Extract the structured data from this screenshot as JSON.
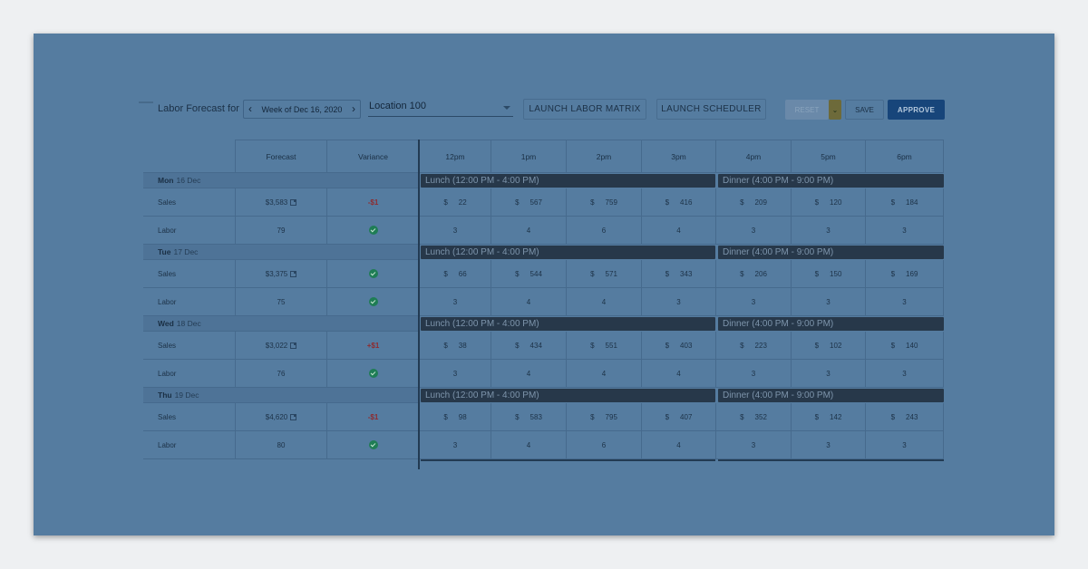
{
  "toolbar": {
    "label": "Labor Forecast for",
    "prev_icon": "‹",
    "next_icon": "›",
    "week": "Week of Dec 16, 2020",
    "location": "Location 100",
    "launch_matrix": "LAUNCH LABOR MATRIX",
    "launch_scheduler": "LAUNCH SCHEDULER",
    "reset": "RESET",
    "reset_menu_icon": "⌄",
    "save": "SAVE",
    "approve": "APPROVE"
  },
  "columns": {
    "forecast": "Forecast",
    "variance": "Variance",
    "hours": [
      "12pm",
      "1pm",
      "2pm",
      "3pm",
      "4pm",
      "5pm",
      "6pm"
    ]
  },
  "row_labels": {
    "sales": "Sales",
    "labor": "Labor"
  },
  "currency": "$",
  "days": [
    {
      "dow": "Mon",
      "date": "16 Dec",
      "sales_forecast": "$3,583",
      "sales_variance": "-$1",
      "labor_forecast": "79",
      "labor_variance": "ok",
      "periods": [
        "Lunch (12:00 PM - 4:00 PM)",
        "Dinner (4:00 PM - 9:00 PM)"
      ],
      "sales": [
        "22",
        "567",
        "759",
        "416",
        "209",
        "120",
        "184"
      ],
      "labor": [
        "3",
        "4",
        "6",
        "4",
        "3",
        "3",
        "3"
      ]
    },
    {
      "dow": "Tue",
      "date": "17 Dec",
      "sales_forecast": "$3,375",
      "sales_variance": "ok",
      "labor_forecast": "75",
      "labor_variance": "ok",
      "periods": [
        "Lunch (12:00 PM - 4:00 PM)",
        "Dinner (4:00 PM - 9:00 PM)"
      ],
      "sales": [
        "66",
        "544",
        "571",
        "343",
        "206",
        "150",
        "169"
      ],
      "labor": [
        "3",
        "4",
        "4",
        "3",
        "3",
        "3",
        "3"
      ]
    },
    {
      "dow": "Wed",
      "date": "18 Dec",
      "sales_forecast": "$3,022",
      "sales_variance": "+$1",
      "labor_forecast": "76",
      "labor_variance": "ok",
      "periods": [
        "Lunch (12:00 PM - 4:00 PM)",
        "Dinner (4:00 PM - 9:00 PM)"
      ],
      "sales": [
        "38",
        "434",
        "551",
        "403",
        "223",
        "102",
        "140"
      ],
      "labor": [
        "3",
        "4",
        "4",
        "4",
        "3",
        "3",
        "3"
      ]
    },
    {
      "dow": "Thu",
      "date": "19 Dec",
      "sales_forecast": "$4,620",
      "sales_variance": "-$1",
      "labor_forecast": "80",
      "labor_variance": "ok",
      "periods": [
        "Lunch (12:00 PM - 4:00 PM)",
        "Dinner (4:00 PM - 9:00 PM)"
      ],
      "sales": [
        "98",
        "583",
        "795",
        "407",
        "352",
        "142",
        "243"
      ],
      "labor": [
        "3",
        "4",
        "6",
        "4",
        "3",
        "3",
        "3"
      ]
    }
  ]
}
